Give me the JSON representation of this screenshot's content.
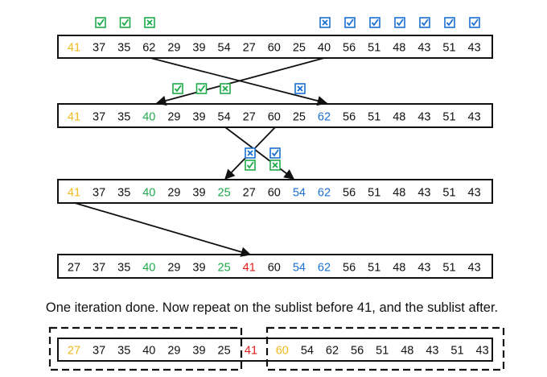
{
  "colors": {
    "pivot": "#f2b91c",
    "green": "#1faa4b",
    "blue": "#1a6fd1",
    "red": "#e21b1b",
    "black": "#111111"
  },
  "rows": [
    {
      "id": "row1",
      "cells": [
        {
          "v": "41",
          "c": "pivot"
        },
        {
          "v": "37",
          "c": "black"
        },
        {
          "v": "35",
          "c": "black"
        },
        {
          "v": "62",
          "c": "black"
        },
        {
          "v": "29",
          "c": "black"
        },
        {
          "v": "39",
          "c": "black"
        },
        {
          "v": "54",
          "c": "black"
        },
        {
          "v": "27",
          "c": "black"
        },
        {
          "v": "60",
          "c": "black"
        },
        {
          "v": "25",
          "c": "black"
        },
        {
          "v": "40",
          "c": "black"
        },
        {
          "v": "56",
          "c": "black"
        },
        {
          "v": "51",
          "c": "black"
        },
        {
          "v": "48",
          "c": "black"
        },
        {
          "v": "43",
          "c": "black"
        },
        {
          "v": "51",
          "c": "black"
        },
        {
          "v": "43",
          "c": "black"
        }
      ]
    },
    {
      "id": "row2",
      "cells": [
        {
          "v": "41",
          "c": "pivot"
        },
        {
          "v": "37",
          "c": "black"
        },
        {
          "v": "35",
          "c": "black"
        },
        {
          "v": "40",
          "c": "green"
        },
        {
          "v": "29",
          "c": "black"
        },
        {
          "v": "39",
          "c": "black"
        },
        {
          "v": "54",
          "c": "black"
        },
        {
          "v": "27",
          "c": "black"
        },
        {
          "v": "60",
          "c": "black"
        },
        {
          "v": "25",
          "c": "black"
        },
        {
          "v": "62",
          "c": "blue"
        },
        {
          "v": "56",
          "c": "black"
        },
        {
          "v": "51",
          "c": "black"
        },
        {
          "v": "48",
          "c": "black"
        },
        {
          "v": "43",
          "c": "black"
        },
        {
          "v": "51",
          "c": "black"
        },
        {
          "v": "43",
          "c": "black"
        }
      ]
    },
    {
      "id": "row3",
      "cells": [
        {
          "v": "41",
          "c": "pivot"
        },
        {
          "v": "37",
          "c": "black"
        },
        {
          "v": "35",
          "c": "black"
        },
        {
          "v": "40",
          "c": "green"
        },
        {
          "v": "29",
          "c": "black"
        },
        {
          "v": "39",
          "c": "black"
        },
        {
          "v": "25",
          "c": "green"
        },
        {
          "v": "27",
          "c": "black"
        },
        {
          "v": "60",
          "c": "black"
        },
        {
          "v": "54",
          "c": "blue"
        },
        {
          "v": "62",
          "c": "blue"
        },
        {
          "v": "56",
          "c": "black"
        },
        {
          "v": "51",
          "c": "black"
        },
        {
          "v": "48",
          "c": "black"
        },
        {
          "v": "43",
          "c": "black"
        },
        {
          "v": "51",
          "c": "black"
        },
        {
          "v": "43",
          "c": "black"
        }
      ]
    },
    {
      "id": "row4",
      "cells": [
        {
          "v": "27",
          "c": "black"
        },
        {
          "v": "37",
          "c": "black"
        },
        {
          "v": "35",
          "c": "black"
        },
        {
          "v": "40",
          "c": "green"
        },
        {
          "v": "29",
          "c": "black"
        },
        {
          "v": "39",
          "c": "black"
        },
        {
          "v": "25",
          "c": "green"
        },
        {
          "v": "41",
          "c": "red"
        },
        {
          "v": "60",
          "c": "black"
        },
        {
          "v": "54",
          "c": "blue"
        },
        {
          "v": "62",
          "c": "blue"
        },
        {
          "v": "56",
          "c": "black"
        },
        {
          "v": "51",
          "c": "black"
        },
        {
          "v": "48",
          "c": "black"
        },
        {
          "v": "43",
          "c": "black"
        },
        {
          "v": "51",
          "c": "black"
        },
        {
          "v": "43",
          "c": "black"
        }
      ]
    },
    {
      "id": "row5",
      "cells": [
        {
          "v": "27",
          "c": "pivot"
        },
        {
          "v": "37",
          "c": "black"
        },
        {
          "v": "35",
          "c": "black"
        },
        {
          "v": "40",
          "c": "black"
        },
        {
          "v": "29",
          "c": "black"
        },
        {
          "v": "39",
          "c": "black"
        },
        {
          "v": "25",
          "c": "black"
        },
        {
          "v": "41",
          "c": "red"
        },
        {
          "v": "60",
          "c": "pivot"
        },
        {
          "v": "54",
          "c": "black"
        },
        {
          "v": "62",
          "c": "black"
        },
        {
          "v": "56",
          "c": "black"
        },
        {
          "v": "51",
          "c": "black"
        },
        {
          "v": "48",
          "c": "black"
        },
        {
          "v": "43",
          "c": "black"
        },
        {
          "v": "51",
          "c": "black"
        },
        {
          "v": "43",
          "c": "black"
        }
      ]
    }
  ],
  "caption": "One iteration done. Now repeat on the sublist before 41, and the sublist after.",
  "marks": {
    "row1_left": [
      "check",
      "check",
      "cross"
    ],
    "row1_right": [
      "cross",
      "check",
      "check",
      "check",
      "check",
      "check",
      "check"
    ],
    "row2_left": [
      "check",
      "check",
      "cross"
    ],
    "row2_right": [
      "cross"
    ],
    "row3_blue": [
      "cross",
      "check"
    ],
    "row3_green": [
      "check",
      "cross"
    ]
  }
}
